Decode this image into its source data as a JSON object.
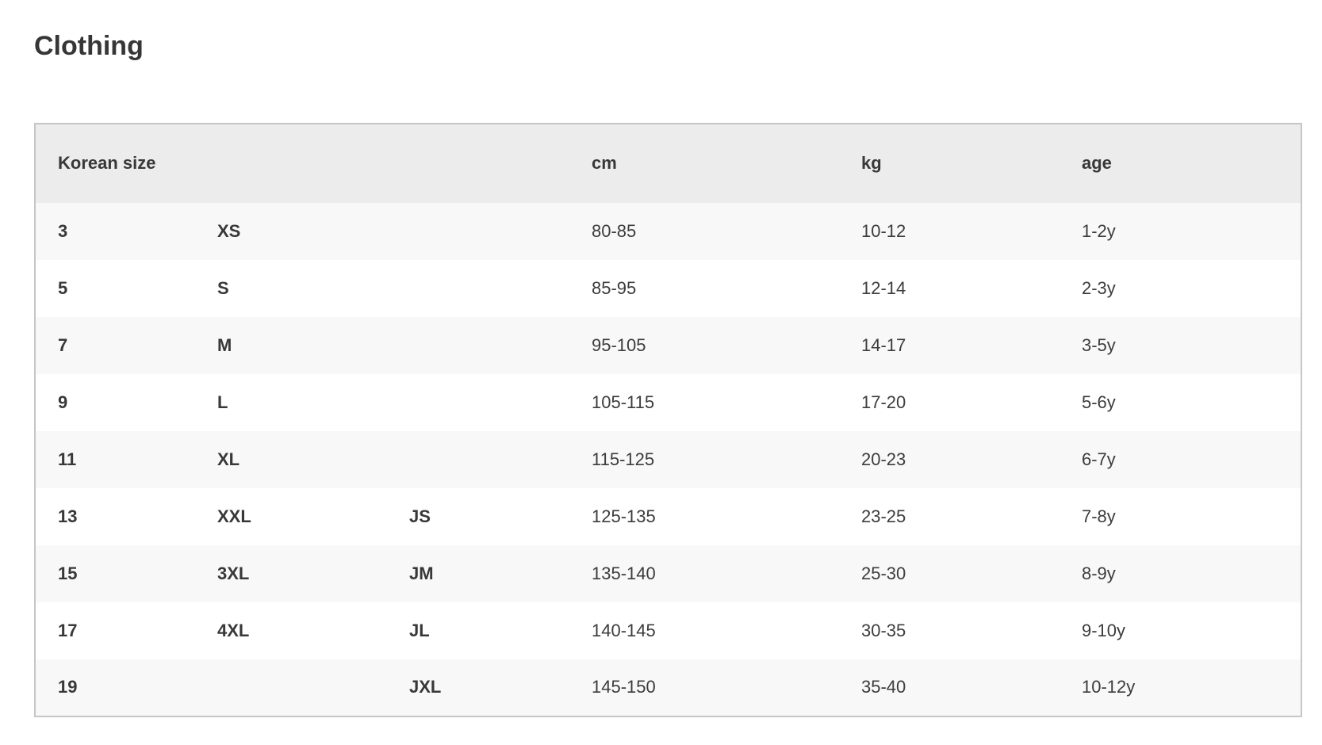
{
  "page": {
    "title": "Clothing"
  },
  "colors": {
    "header_bg": "#ececec",
    "stripe_bg": "#f8f8f8",
    "border": "#c6c6c6",
    "text": "#3a3a3a"
  },
  "table": {
    "headers": [
      "Korean size",
      "",
      "",
      "cm",
      "kg",
      "age"
    ],
    "rows": [
      [
        "3",
        "XS",
        "",
        "80-85",
        "10-12",
        "1-2y"
      ],
      [
        "5",
        "S",
        "",
        "85-95",
        "12-14",
        "2-3y"
      ],
      [
        "7",
        "M",
        "",
        "95-105",
        "14-17",
        "3-5y"
      ],
      [
        "9",
        "L",
        "",
        "105-115",
        "17-20",
        "5-6y"
      ],
      [
        "11",
        "XL",
        "",
        "115-125",
        "20-23",
        "6-7y"
      ],
      [
        "13",
        "XXL",
        "JS",
        "125-135",
        "23-25",
        "7-8y"
      ],
      [
        "15",
        "3XL",
        "JM",
        "135-140",
        "25-30",
        "8-9y"
      ],
      [
        "17",
        "4XL",
        "JL",
        "140-145",
        "30-35",
        "9-10y"
      ],
      [
        "19",
        "",
        "JXL",
        "145-150",
        "35-40",
        "10-12y"
      ]
    ]
  }
}
